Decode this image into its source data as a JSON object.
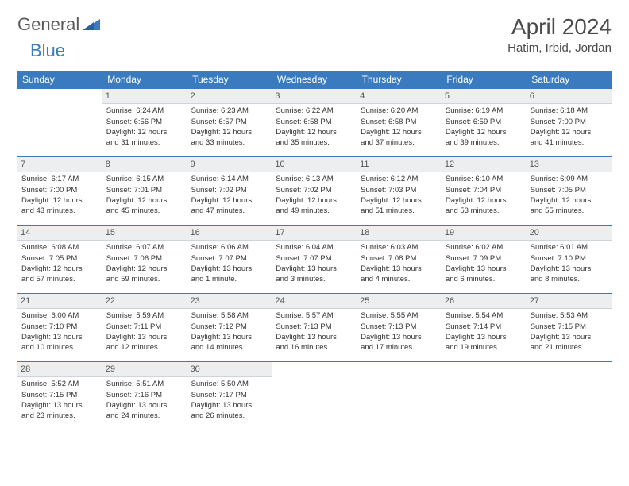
{
  "logo": {
    "text1": "General",
    "text2": "Blue",
    "mark_color": "#3a7bbf"
  },
  "title": "April 2024",
  "location": "Hatim, Irbid, Jordan",
  "colors": {
    "header_bg": "#3a7bbf",
    "header_text": "#ffffff",
    "daynum_bg": "#eceef0",
    "border": "#3a7bbf",
    "text": "#333333",
    "title_text": "#4a4a4a"
  },
  "day_headers": [
    "Sunday",
    "Monday",
    "Tuesday",
    "Wednesday",
    "Thursday",
    "Friday",
    "Saturday"
  ],
  "weeks": [
    [
      null,
      {
        "n": "1",
        "sr": "Sunrise: 6:24 AM",
        "ss": "Sunset: 6:56 PM",
        "d1": "Daylight: 12 hours",
        "d2": "and 31 minutes."
      },
      {
        "n": "2",
        "sr": "Sunrise: 6:23 AM",
        "ss": "Sunset: 6:57 PM",
        "d1": "Daylight: 12 hours",
        "d2": "and 33 minutes."
      },
      {
        "n": "3",
        "sr": "Sunrise: 6:22 AM",
        "ss": "Sunset: 6:58 PM",
        "d1": "Daylight: 12 hours",
        "d2": "and 35 minutes."
      },
      {
        "n": "4",
        "sr": "Sunrise: 6:20 AM",
        "ss": "Sunset: 6:58 PM",
        "d1": "Daylight: 12 hours",
        "d2": "and 37 minutes."
      },
      {
        "n": "5",
        "sr": "Sunrise: 6:19 AM",
        "ss": "Sunset: 6:59 PM",
        "d1": "Daylight: 12 hours",
        "d2": "and 39 minutes."
      },
      {
        "n": "6",
        "sr": "Sunrise: 6:18 AM",
        "ss": "Sunset: 7:00 PM",
        "d1": "Daylight: 12 hours",
        "d2": "and 41 minutes."
      }
    ],
    [
      {
        "n": "7",
        "sr": "Sunrise: 6:17 AM",
        "ss": "Sunset: 7:00 PM",
        "d1": "Daylight: 12 hours",
        "d2": "and 43 minutes."
      },
      {
        "n": "8",
        "sr": "Sunrise: 6:15 AM",
        "ss": "Sunset: 7:01 PM",
        "d1": "Daylight: 12 hours",
        "d2": "and 45 minutes."
      },
      {
        "n": "9",
        "sr": "Sunrise: 6:14 AM",
        "ss": "Sunset: 7:02 PM",
        "d1": "Daylight: 12 hours",
        "d2": "and 47 minutes."
      },
      {
        "n": "10",
        "sr": "Sunrise: 6:13 AM",
        "ss": "Sunset: 7:02 PM",
        "d1": "Daylight: 12 hours",
        "d2": "and 49 minutes."
      },
      {
        "n": "11",
        "sr": "Sunrise: 6:12 AM",
        "ss": "Sunset: 7:03 PM",
        "d1": "Daylight: 12 hours",
        "d2": "and 51 minutes."
      },
      {
        "n": "12",
        "sr": "Sunrise: 6:10 AM",
        "ss": "Sunset: 7:04 PM",
        "d1": "Daylight: 12 hours",
        "d2": "and 53 minutes."
      },
      {
        "n": "13",
        "sr": "Sunrise: 6:09 AM",
        "ss": "Sunset: 7:05 PM",
        "d1": "Daylight: 12 hours",
        "d2": "and 55 minutes."
      }
    ],
    [
      {
        "n": "14",
        "sr": "Sunrise: 6:08 AM",
        "ss": "Sunset: 7:05 PM",
        "d1": "Daylight: 12 hours",
        "d2": "and 57 minutes."
      },
      {
        "n": "15",
        "sr": "Sunrise: 6:07 AM",
        "ss": "Sunset: 7:06 PM",
        "d1": "Daylight: 12 hours",
        "d2": "and 59 minutes."
      },
      {
        "n": "16",
        "sr": "Sunrise: 6:06 AM",
        "ss": "Sunset: 7:07 PM",
        "d1": "Daylight: 13 hours",
        "d2": "and 1 minute."
      },
      {
        "n": "17",
        "sr": "Sunrise: 6:04 AM",
        "ss": "Sunset: 7:07 PM",
        "d1": "Daylight: 13 hours",
        "d2": "and 3 minutes."
      },
      {
        "n": "18",
        "sr": "Sunrise: 6:03 AM",
        "ss": "Sunset: 7:08 PM",
        "d1": "Daylight: 13 hours",
        "d2": "and 4 minutes."
      },
      {
        "n": "19",
        "sr": "Sunrise: 6:02 AM",
        "ss": "Sunset: 7:09 PM",
        "d1": "Daylight: 13 hours",
        "d2": "and 6 minutes."
      },
      {
        "n": "20",
        "sr": "Sunrise: 6:01 AM",
        "ss": "Sunset: 7:10 PM",
        "d1": "Daylight: 13 hours",
        "d2": "and 8 minutes."
      }
    ],
    [
      {
        "n": "21",
        "sr": "Sunrise: 6:00 AM",
        "ss": "Sunset: 7:10 PM",
        "d1": "Daylight: 13 hours",
        "d2": "and 10 minutes."
      },
      {
        "n": "22",
        "sr": "Sunrise: 5:59 AM",
        "ss": "Sunset: 7:11 PM",
        "d1": "Daylight: 13 hours",
        "d2": "and 12 minutes."
      },
      {
        "n": "23",
        "sr": "Sunrise: 5:58 AM",
        "ss": "Sunset: 7:12 PM",
        "d1": "Daylight: 13 hours",
        "d2": "and 14 minutes."
      },
      {
        "n": "24",
        "sr": "Sunrise: 5:57 AM",
        "ss": "Sunset: 7:13 PM",
        "d1": "Daylight: 13 hours",
        "d2": "and 16 minutes."
      },
      {
        "n": "25",
        "sr": "Sunrise: 5:55 AM",
        "ss": "Sunset: 7:13 PM",
        "d1": "Daylight: 13 hours",
        "d2": "and 17 minutes."
      },
      {
        "n": "26",
        "sr": "Sunrise: 5:54 AM",
        "ss": "Sunset: 7:14 PM",
        "d1": "Daylight: 13 hours",
        "d2": "and 19 minutes."
      },
      {
        "n": "27",
        "sr": "Sunrise: 5:53 AM",
        "ss": "Sunset: 7:15 PM",
        "d1": "Daylight: 13 hours",
        "d2": "and 21 minutes."
      }
    ],
    [
      {
        "n": "28",
        "sr": "Sunrise: 5:52 AM",
        "ss": "Sunset: 7:15 PM",
        "d1": "Daylight: 13 hours",
        "d2": "and 23 minutes."
      },
      {
        "n": "29",
        "sr": "Sunrise: 5:51 AM",
        "ss": "Sunset: 7:16 PM",
        "d1": "Daylight: 13 hours",
        "d2": "and 24 minutes."
      },
      {
        "n": "30",
        "sr": "Sunrise: 5:50 AM",
        "ss": "Sunset: 7:17 PM",
        "d1": "Daylight: 13 hours",
        "d2": "and 26 minutes."
      },
      null,
      null,
      null,
      null
    ]
  ]
}
